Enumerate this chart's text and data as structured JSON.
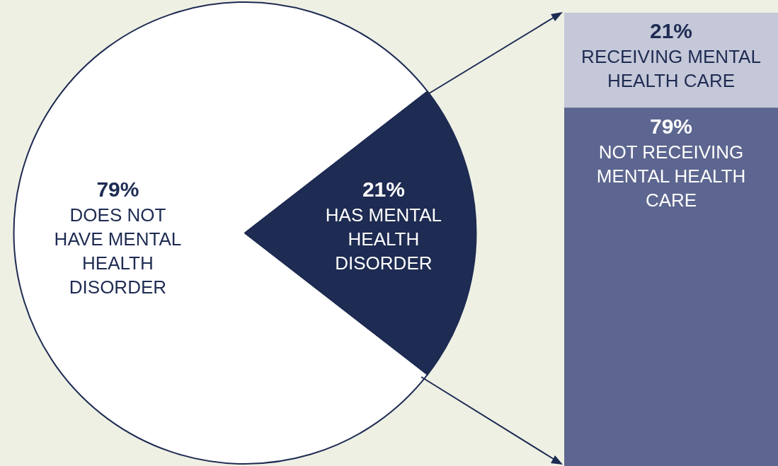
{
  "chart_data": [
    {
      "type": "pie",
      "categories": [
        "DOES NOT HAVE MENTAL HEALTH DISORDER",
        "HAS MENTAL HEALTH DISORDER"
      ],
      "values": [
        79,
        21
      ],
      "colors": [
        "#ffffff",
        "#1e2b52"
      ],
      "value_labels": [
        "79%",
        "21%"
      ],
      "legend": false
    },
    {
      "type": "bar",
      "stacked": true,
      "categories": [
        null
      ],
      "legend": false,
      "tick_labels": false,
      "series": [
        {
          "name": "NOT RECEIVING MENTAL HEALTH CARE",
          "color": "#5d6690",
          "values": [
            79
          ],
          "value_labels": [
            "79%"
          ]
        },
        {
          "name": "RECEIVING MENTAL HEALTH CARE",
          "color": "#c5c8d8",
          "values": [
            21
          ],
          "value_labels": [
            "21%"
          ]
        }
      ]
    }
  ]
}
